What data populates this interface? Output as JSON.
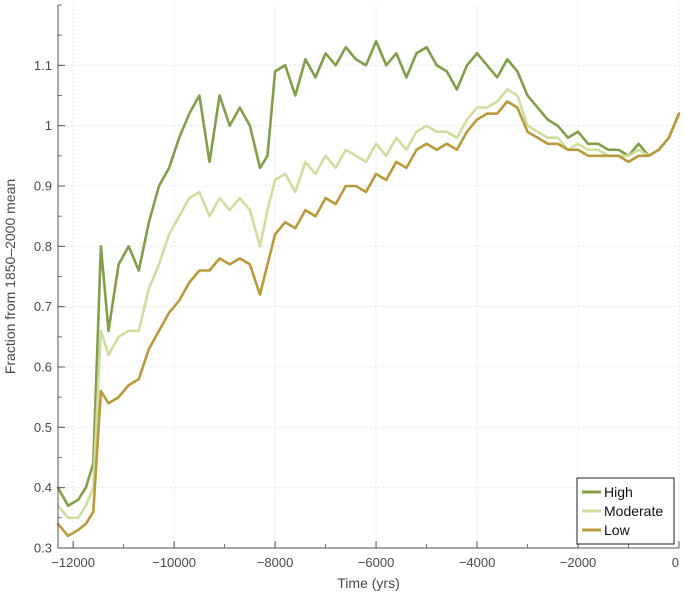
{
  "chart_data": {
    "type": "line",
    "xlabel": "Time (yrs)",
    "ylabel": "Fraction from 1850–2000 mean",
    "xlim": [
      -12300,
      0
    ],
    "ylim": [
      0.3,
      1.2
    ],
    "x_ticks": [
      -12000,
      -10000,
      -8000,
      -6000,
      -4000,
      -2000,
      0
    ],
    "x_tick_labels": [
      "−12000",
      "−10000",
      "−8000",
      "−6000",
      "−4000",
      "−2000",
      "0"
    ],
    "y_ticks": [
      0.3,
      0.4,
      0.5,
      0.6,
      0.7,
      0.8,
      0.9,
      1.0,
      1.1
    ],
    "y_tick_labels": [
      "0.3",
      "0.4",
      "0.5",
      "0.6",
      "0.7",
      "0.8",
      "0.9",
      "1",
      "1.1"
    ],
    "grid": "horizontal dotted",
    "legend": "bottom-right",
    "x": [
      -12300,
      -12100,
      -11900,
      -11750,
      -11600,
      -11450,
      -11300,
      -11100,
      -10900,
      -10700,
      -10500,
      -10300,
      -10100,
      -9900,
      -9700,
      -9500,
      -9300,
      -9100,
      -8900,
      -8700,
      -8500,
      -8300,
      -8150,
      -8000,
      -7800,
      -7600,
      -7400,
      -7200,
      -7000,
      -6800,
      -6600,
      -6400,
      -6200,
      -6000,
      -5800,
      -5600,
      -5400,
      -5200,
      -5000,
      -4800,
      -4600,
      -4400,
      -4200,
      -4000,
      -3800,
      -3600,
      -3400,
      -3200,
      -3000,
      -2800,
      -2600,
      -2400,
      -2200,
      -2000,
      -1800,
      -1600,
      -1400,
      -1200,
      -1000,
      -800,
      -600,
      -400,
      -200,
      0
    ],
    "series": [
      {
        "name": "High",
        "color": "#839d4a",
        "values": [
          0.4,
          0.37,
          0.38,
          0.4,
          0.44,
          0.8,
          0.66,
          0.77,
          0.8,
          0.76,
          0.84,
          0.9,
          0.93,
          0.98,
          1.02,
          1.05,
          0.94,
          1.05,
          1.0,
          1.03,
          1.0,
          0.93,
          0.95,
          1.09,
          1.1,
          1.05,
          1.11,
          1.08,
          1.12,
          1.1,
          1.13,
          1.11,
          1.1,
          1.14,
          1.1,
          1.12,
          1.08,
          1.12,
          1.13,
          1.1,
          1.09,
          1.06,
          1.1,
          1.12,
          1.1,
          1.08,
          1.11,
          1.09,
          1.05,
          1.03,
          1.01,
          1.0,
          0.98,
          0.99,
          0.97,
          0.97,
          0.96,
          0.96,
          0.95,
          0.97,
          0.95,
          0.96,
          0.98,
          1.02
        ]
      },
      {
        "name": "Moderate",
        "color": "#cfdea0",
        "values": [
          0.37,
          0.35,
          0.35,
          0.37,
          0.4,
          0.66,
          0.62,
          0.65,
          0.66,
          0.66,
          0.73,
          0.77,
          0.82,
          0.85,
          0.88,
          0.89,
          0.85,
          0.88,
          0.86,
          0.88,
          0.86,
          0.8,
          0.86,
          0.91,
          0.92,
          0.89,
          0.94,
          0.92,
          0.95,
          0.93,
          0.96,
          0.95,
          0.94,
          0.97,
          0.95,
          0.98,
          0.96,
          0.99,
          1.0,
          0.99,
          0.99,
          0.98,
          1.01,
          1.03,
          1.03,
          1.04,
          1.06,
          1.05,
          1.0,
          0.99,
          0.98,
          0.98,
          0.96,
          0.97,
          0.96,
          0.96,
          0.95,
          0.95,
          0.95,
          0.96,
          0.95,
          0.96,
          0.98,
          1.02
        ]
      },
      {
        "name": "Low",
        "color": "#b89a3c",
        "values": [
          0.34,
          0.32,
          0.33,
          0.34,
          0.36,
          0.56,
          0.54,
          0.55,
          0.57,
          0.58,
          0.63,
          0.66,
          0.69,
          0.71,
          0.74,
          0.76,
          0.76,
          0.78,
          0.77,
          0.78,
          0.77,
          0.72,
          0.77,
          0.82,
          0.84,
          0.83,
          0.86,
          0.85,
          0.88,
          0.87,
          0.9,
          0.9,
          0.89,
          0.92,
          0.91,
          0.94,
          0.93,
          0.96,
          0.97,
          0.96,
          0.97,
          0.96,
          0.99,
          1.01,
          1.02,
          1.02,
          1.04,
          1.03,
          0.99,
          0.98,
          0.97,
          0.97,
          0.96,
          0.96,
          0.95,
          0.95,
          0.95,
          0.95,
          0.94,
          0.95,
          0.95,
          0.96,
          0.98,
          1.02
        ]
      }
    ]
  }
}
